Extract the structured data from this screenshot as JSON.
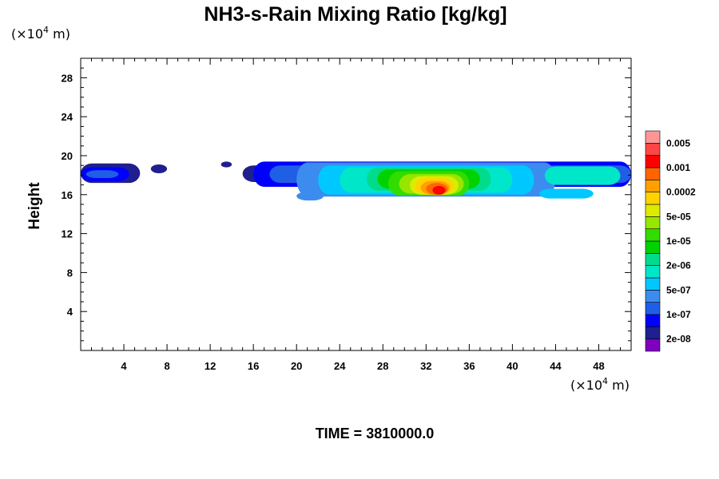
{
  "chart_data": {
    "type": "heatmap",
    "title": "NH3-s-Rain Mixing Ratio [kg/kg]",
    "xlabel": "",
    "ylabel": "Height",
    "x_unit": "(×10",
    "x_unit_exp": "4",
    "x_unit_tail": " m)",
    "y_unit": "(×10",
    "y_unit_exp": "4",
    "y_unit_tail": " m)",
    "xlim": [
      0,
      51
    ],
    "ylim": [
      0,
      30
    ],
    "x_ticks": [
      4,
      8,
      12,
      16,
      20,
      24,
      28,
      32,
      36,
      40,
      44,
      48
    ],
    "y_ticks": [
      4,
      8,
      12,
      16,
      20,
      24,
      28
    ],
    "x_tick_labels": [
      "4",
      "8",
      "12",
      "16",
      "20",
      "24",
      "28",
      "32",
      "36",
      "40",
      "44",
      "48"
    ],
    "y_tick_labels": [
      "4",
      "8",
      "12",
      "16",
      "20",
      "24",
      "28"
    ],
    "footer": "TIME = 3810000.0",
    "colorbar": {
      "colors": [
        "#7f00bf",
        "#1f1f8f",
        "#0000ff",
        "#1e5fe6",
        "#3c8cf0",
        "#00c8ff",
        "#00e6c8",
        "#00dc8c",
        "#00d200",
        "#32dc00",
        "#96e600",
        "#dceb00",
        "#ffd200",
        "#ffa000",
        "#ff6400",
        "#ff0000",
        "#ff4646",
        "#ff9696"
      ],
      "labels": [
        "2e-08",
        "1e-07",
        "5e-07",
        "2e-06",
        "1e-05",
        "5e-05",
        "0.0002",
        "0.001",
        "0.005"
      ]
    },
    "regions": [
      {
        "x": [
          0.0,
          5.5
        ],
        "y": [
          17.2,
          19.2
        ],
        "level": 1
      },
      {
        "x": [
          0.0,
          4.5
        ],
        "y": [
          17.4,
          18.8
        ],
        "level": 2
      },
      {
        "x": [
          0.5,
          3.5
        ],
        "y": [
          17.7,
          18.5
        ],
        "level": 3
      },
      {
        "x": [
          6.5,
          8.0
        ],
        "y": [
          18.2,
          19.1
        ],
        "level": 1
      },
      {
        "x": [
          13.0,
          14.0
        ],
        "y": [
          18.8,
          19.4
        ],
        "level": 1
      },
      {
        "x": [
          15.0,
          22.0
        ],
        "y": [
          17.3,
          19.0
        ],
        "level": 1
      },
      {
        "x": [
          16.0,
          51.0
        ],
        "y": [
          16.8,
          19.4
        ],
        "level": 2
      },
      {
        "x": [
          17.5,
          51.0
        ],
        "y": [
          17.2,
          19.0
        ],
        "level": 3
      },
      {
        "x": [
          20.0,
          44.0
        ],
        "y": [
          15.8,
          19.3
        ],
        "level": 4
      },
      {
        "x": [
          20.0,
          22.5
        ],
        "y": [
          15.4,
          16.3
        ],
        "level": 4
      },
      {
        "x": [
          22.0,
          42.0
        ],
        "y": [
          16.0,
          19.0
        ],
        "level": 5
      },
      {
        "x": [
          24.0,
          40.0
        ],
        "y": [
          16.2,
          18.8
        ],
        "level": 6
      },
      {
        "x": [
          42.5,
          47.5
        ],
        "y": [
          15.6,
          16.6
        ],
        "level": 5
      },
      {
        "x": [
          43.0,
          50.0
        ],
        "y": [
          17.0,
          18.9
        ],
        "level": 6
      },
      {
        "x": [
          26.5,
          38.0
        ],
        "y": [
          16.4,
          18.8
        ],
        "level": 7
      },
      {
        "x": [
          27.5,
          37.0
        ],
        "y": [
          16.6,
          18.6
        ],
        "level": 8
      },
      {
        "x": [
          28.5,
          36.0
        ],
        "y": [
          15.9,
          18.4
        ],
        "level": 9
      },
      {
        "x": [
          29.5,
          35.5
        ],
        "y": [
          16.1,
          18.1
        ],
        "level": 10
      },
      {
        "x": [
          30.5,
          35.0
        ],
        "y": [
          16.0,
          17.9
        ],
        "level": 11
      },
      {
        "x": [
          31.0,
          34.5
        ],
        "y": [
          16.0,
          17.7
        ],
        "level": 12
      },
      {
        "x": [
          31.5,
          34.2
        ],
        "y": [
          16.0,
          17.4
        ],
        "level": 13
      },
      {
        "x": [
          32.0,
          34.0
        ],
        "y": [
          16.0,
          17.2
        ],
        "level": 14
      },
      {
        "x": [
          32.6,
          33.8
        ],
        "y": [
          16.0,
          16.9
        ],
        "level": 15
      }
    ]
  }
}
